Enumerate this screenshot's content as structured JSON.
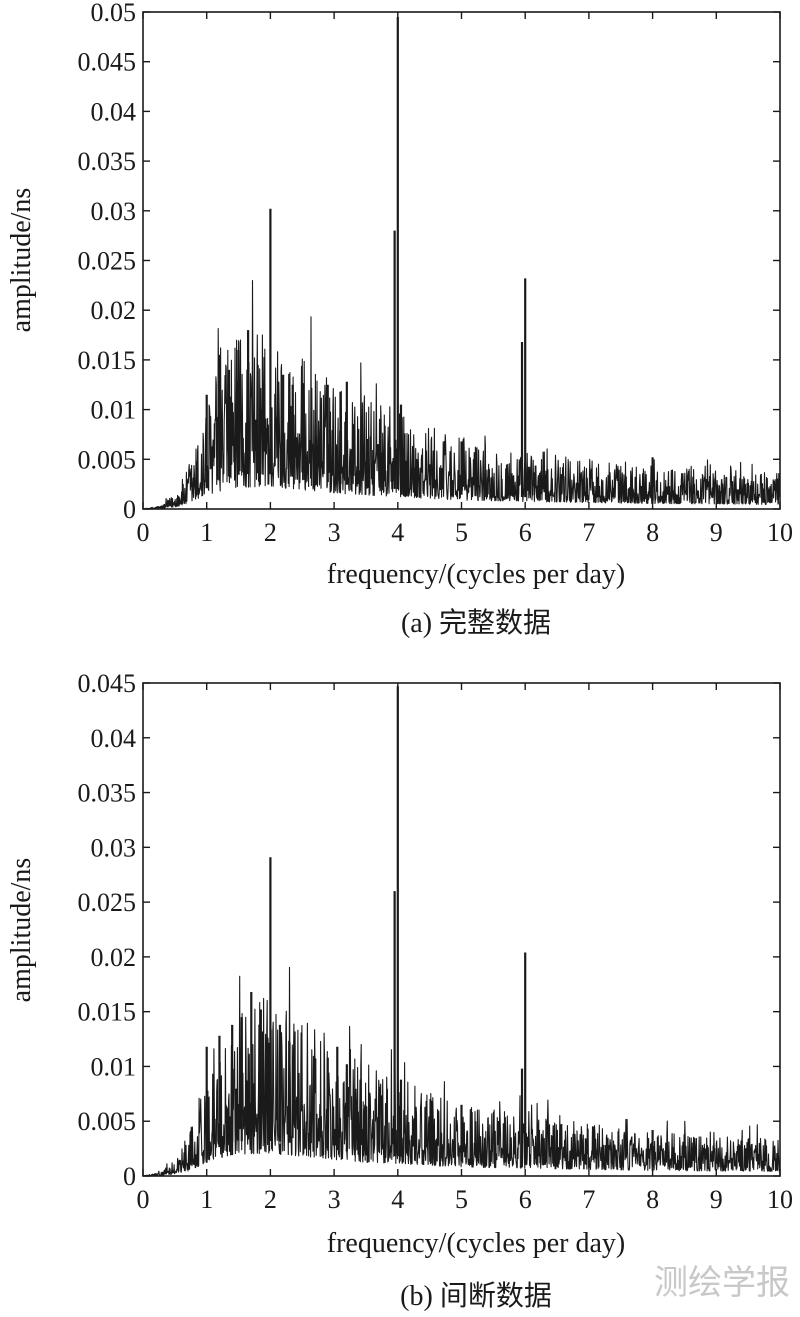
{
  "watermark": "测绘学报",
  "colors": {
    "line": "#1a1a1a",
    "axis": "#1a1a1a",
    "background": "#ffffff"
  },
  "chart_data": [
    {
      "type": "line",
      "caption": "(a) 完整数据",
      "xlabel": "frequency/(cycles per day)",
      "ylabel": "amplitude/ns",
      "xlim": [
        0,
        10
      ],
      "ylim": [
        0,
        0.05
      ],
      "x_ticks": [
        0,
        1,
        2,
        3,
        4,
        5,
        6,
        7,
        8,
        9,
        10
      ],
      "y_ticks": [
        0,
        0.005,
        0.01,
        0.015,
        0.02,
        0.025,
        0.03,
        0.035,
        0.04,
        0.045,
        0.05
      ],
      "y_tick_labels": [
        "0",
        "0.005",
        "0.01",
        "0.015",
        "0.02",
        "0.025",
        "0.03",
        "0.035",
        "0.04",
        "0.045",
        "0.05"
      ],
      "grid": false,
      "spectrum_envelope": [
        [
          0.0,
          0.0
        ],
        [
          0.3,
          0.0002
        ],
        [
          0.5,
          0.0008
        ],
        [
          0.7,
          0.002
        ],
        [
          0.9,
          0.004
        ],
        [
          1.1,
          0.0065
        ],
        [
          1.4,
          0.0085
        ],
        [
          1.8,
          0.009
        ],
        [
          2.2,
          0.0085
        ],
        [
          2.6,
          0.0075
        ],
        [
          3.0,
          0.0065
        ],
        [
          3.5,
          0.0055
        ],
        [
          4.0,
          0.005
        ],
        [
          4.5,
          0.0042
        ],
        [
          5.0,
          0.0036
        ],
        [
          6.0,
          0.003
        ],
        [
          7.0,
          0.0026
        ],
        [
          8.0,
          0.0022
        ],
        [
          9.0,
          0.002
        ],
        [
          10.0,
          0.0018
        ]
      ],
      "peaks": [
        {
          "x": 1.0,
          "y": 0.0115
        },
        {
          "x": 1.2,
          "y": 0.0155
        },
        {
          "x": 1.35,
          "y": 0.014
        },
        {
          "x": 1.5,
          "y": 0.016
        },
        {
          "x": 1.65,
          "y": 0.018
        },
        {
          "x": 1.8,
          "y": 0.0145
        },
        {
          "x": 2.0,
          "y": 0.0302
        },
        {
          "x": 2.2,
          "y": 0.0135
        },
        {
          "x": 2.35,
          "y": 0.0125
        },
        {
          "x": 2.9,
          "y": 0.0125
        },
        {
          "x": 3.1,
          "y": 0.0118
        },
        {
          "x": 3.2,
          "y": 0.0128
        },
        {
          "x": 3.95,
          "y": 0.028
        },
        {
          "x": 4.0,
          "y": 0.0495
        },
        {
          "x": 4.05,
          "y": 0.0105
        },
        {
          "x": 5.0,
          "y": 0.0068
        },
        {
          "x": 5.95,
          "y": 0.0168
        },
        {
          "x": 6.0,
          "y": 0.0232
        },
        {
          "x": 8.0,
          "y": 0.0052
        }
      ]
    },
    {
      "type": "line",
      "caption": "(b) 间断数据",
      "xlabel": "frequency/(cycles per day)",
      "ylabel": "amplitude/ns",
      "xlim": [
        0,
        10
      ],
      "ylim": [
        0,
        0.045
      ],
      "x_ticks": [
        0,
        1,
        2,
        3,
        4,
        5,
        6,
        7,
        8,
        9,
        10
      ],
      "y_ticks": [
        0,
        0.005,
        0.01,
        0.015,
        0.02,
        0.025,
        0.03,
        0.035,
        0.04,
        0.045
      ],
      "y_tick_labels": [
        "0",
        "0.005",
        "0.01",
        "0.015",
        "0.02",
        "0.025",
        "0.03",
        "0.035",
        "0.04",
        "0.045"
      ],
      "grid": false,
      "spectrum_envelope": [
        [
          0.0,
          0.0
        ],
        [
          0.3,
          0.0002
        ],
        [
          0.5,
          0.0008
        ],
        [
          0.7,
          0.0018
        ],
        [
          0.9,
          0.0038
        ],
        [
          1.1,
          0.006
        ],
        [
          1.4,
          0.0078
        ],
        [
          1.8,
          0.0082
        ],
        [
          2.2,
          0.0078
        ],
        [
          2.6,
          0.007
        ],
        [
          3.0,
          0.006
        ],
        [
          3.5,
          0.005
        ],
        [
          4.0,
          0.0045
        ],
        [
          4.5,
          0.0038
        ],
        [
          5.0,
          0.0033
        ],
        [
          6.0,
          0.0028
        ],
        [
          7.0,
          0.0024
        ],
        [
          8.0,
          0.002
        ],
        [
          9.0,
          0.0018
        ],
        [
          10.0,
          0.0017
        ]
      ],
      "peaks": [
        {
          "x": 1.0,
          "y": 0.0118
        },
        {
          "x": 1.2,
          "y": 0.0128
        },
        {
          "x": 1.4,
          "y": 0.0138
        },
        {
          "x": 1.55,
          "y": 0.0145
        },
        {
          "x": 1.7,
          "y": 0.0168
        },
        {
          "x": 1.85,
          "y": 0.0152
        },
        {
          "x": 2.0,
          "y": 0.0291
        },
        {
          "x": 2.15,
          "y": 0.0138
        },
        {
          "x": 2.3,
          "y": 0.0122
        },
        {
          "x": 2.9,
          "y": 0.0108
        },
        {
          "x": 3.05,
          "y": 0.0118
        },
        {
          "x": 3.2,
          "y": 0.0102
        },
        {
          "x": 3.95,
          "y": 0.026
        },
        {
          "x": 4.0,
          "y": 0.0447
        },
        {
          "x": 4.05,
          "y": 0.0088
        },
        {
          "x": 5.0,
          "y": 0.0065
        },
        {
          "x": 5.95,
          "y": 0.0098
        },
        {
          "x": 6.0,
          "y": 0.0204
        },
        {
          "x": 8.0,
          "y": 0.0042
        }
      ]
    }
  ]
}
